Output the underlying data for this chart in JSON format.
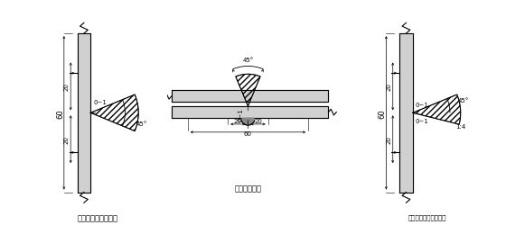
{
  "title1": "等断面水平焊缝详图",
  "title2": "垂直焊缝详图",
  "title3": "不等断面水平焊缝详图",
  "bg_color": "#ffffff",
  "line_color": "#000000",
  "font_size": 6,
  "label_font_size": 5
}
